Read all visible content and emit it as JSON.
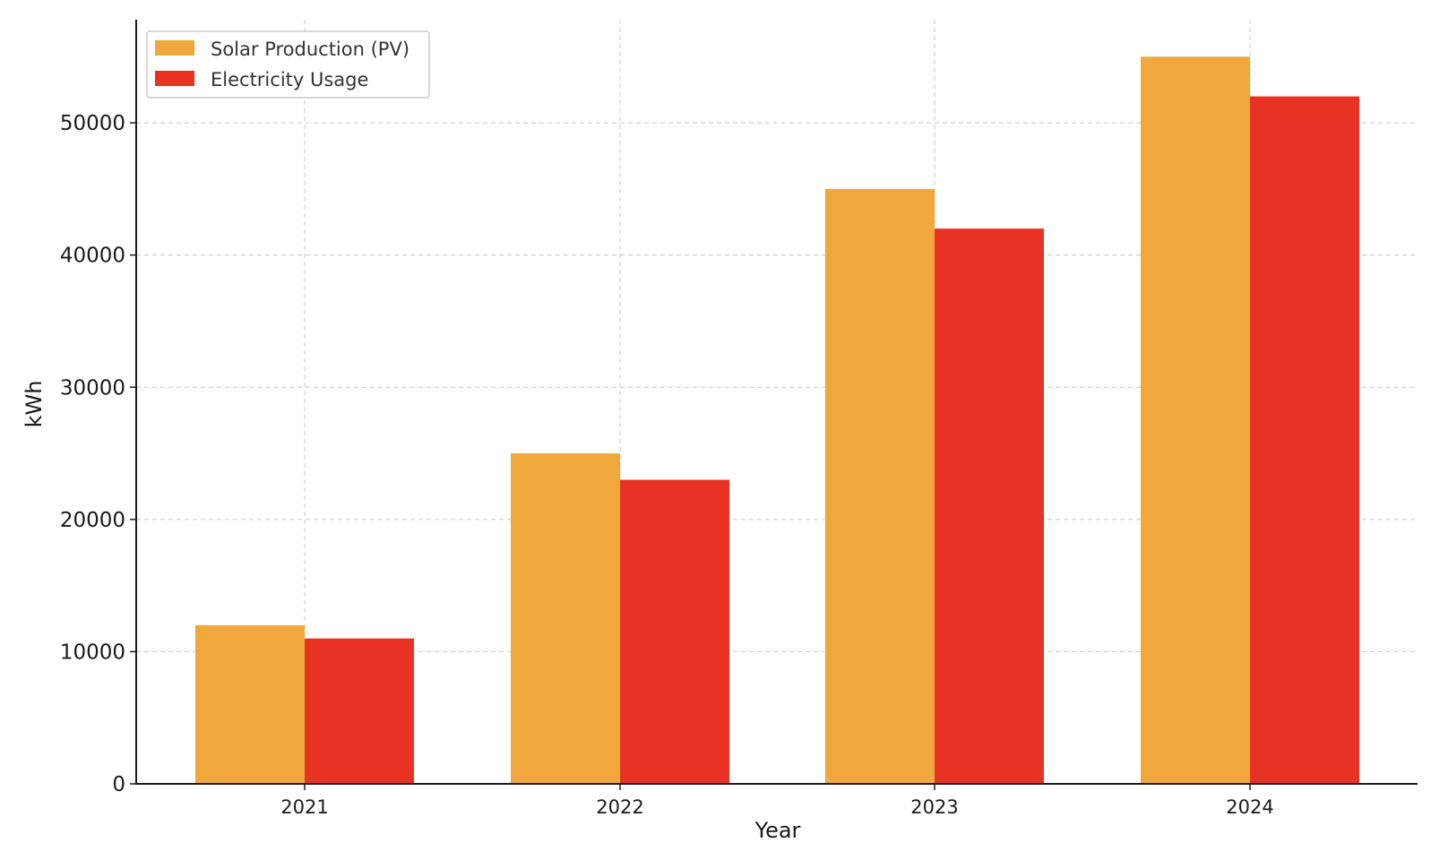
{
  "chart_data": {
    "type": "bar",
    "title": "",
    "xlabel": "Year",
    "ylabel": "kWh",
    "categories": [
      "2021",
      "2022",
      "2023",
      "2024"
    ],
    "series": [
      {
        "name": "Solar Production (PV)",
        "color": "#F0A83C",
        "values": [
          12000,
          25000,
          45000,
          55000
        ]
      },
      {
        "name": "Electricity Usage",
        "color": "#E83324",
        "values": [
          11000,
          23000,
          42000,
          52000
        ]
      }
    ],
    "ylim": [
      0,
      57800
    ],
    "yticks": [
      0,
      10000,
      20000,
      30000,
      40000,
      50000
    ],
    "ytick_labels": [
      "0",
      "10000",
      "20000",
      "30000",
      "40000",
      "50000"
    ],
    "grid": true,
    "legend_position": "top-left"
  }
}
